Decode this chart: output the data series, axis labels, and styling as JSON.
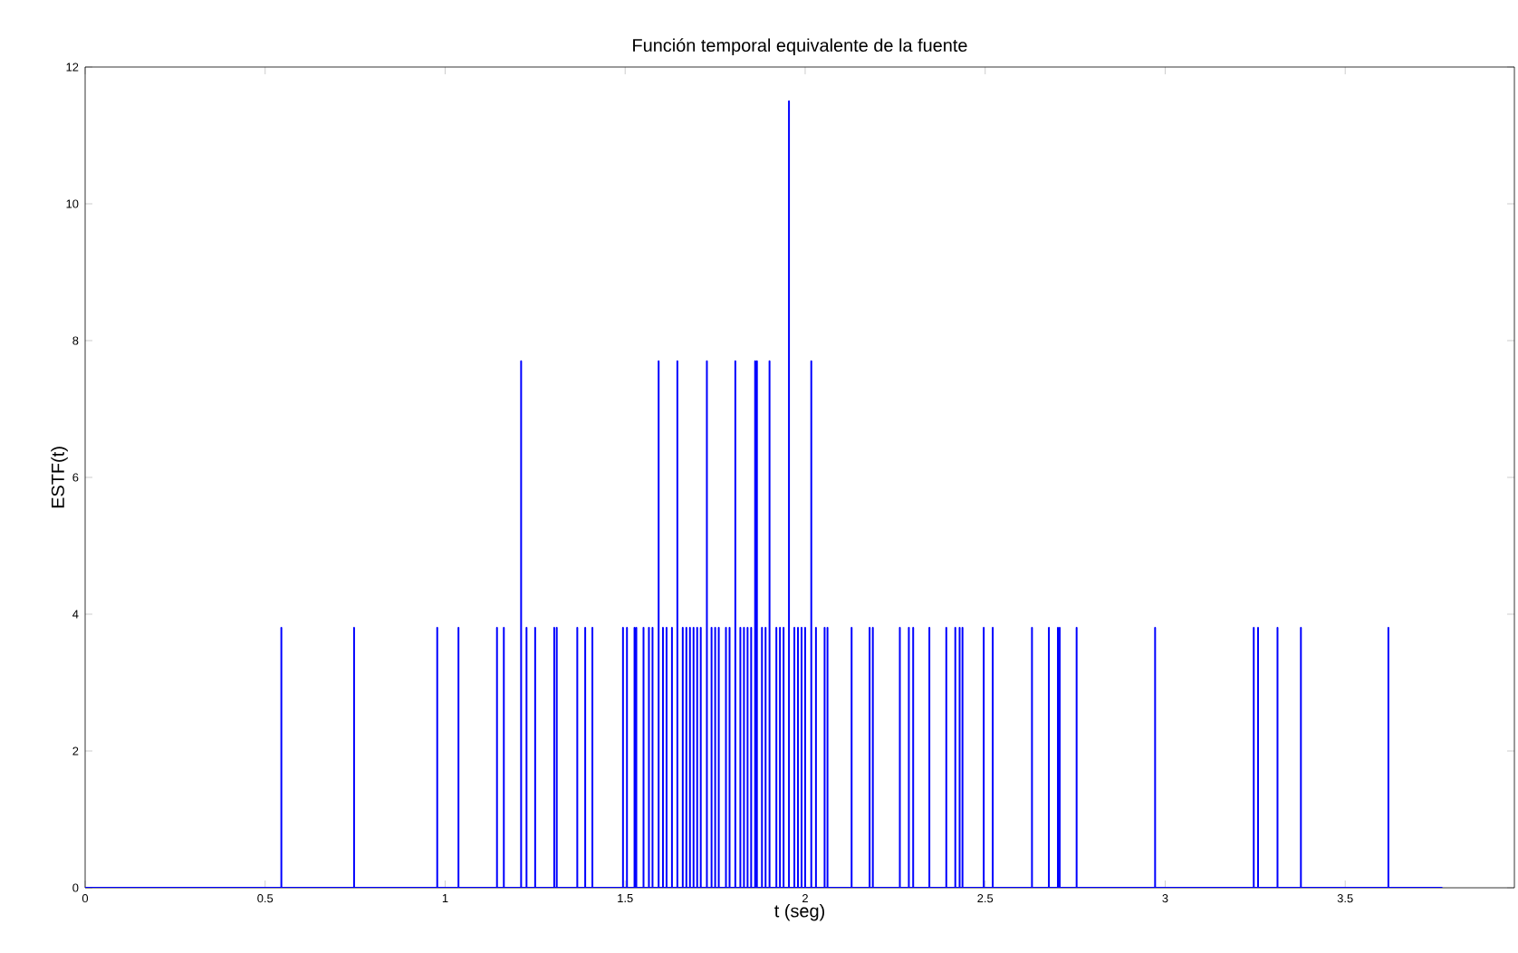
{
  "chart_data": {
    "type": "line",
    "title": "Función temporal equivalente de la fuente",
    "xlabel": "t (seg)",
    "ylabel": "ESTF(t)",
    "xlim": [
      0,
      3.97
    ],
    "ylim": [
      0,
      12
    ],
    "xticks": [
      0,
      0.5,
      1,
      1.5,
      2,
      2.5,
      3,
      3.5
    ],
    "yticks": [
      0,
      2,
      4,
      6,
      8,
      10,
      12
    ],
    "series": [
      {
        "color": "#0000ff",
        "x": [
          0,
          0.545,
          0.545,
          0.545,
          0.747,
          0.747,
          0.747,
          0.978,
          0.978,
          0.978,
          1.037,
          1.037,
          1.037,
          1.144,
          1.144,
          1.144,
          1.163,
          1.163,
          1.163,
          1.211,
          1.211,
          1.211,
          1.226,
          1.226,
          1.226,
          1.25,
          1.25,
          1.25,
          1.303,
          1.303,
          1.303,
          1.31,
          1.31,
          1.31,
          1.367,
          1.367,
          1.367,
          1.389,
          1.389,
          1.389,
          1.409,
          1.409,
          1.409,
          1.494,
          1.494,
          1.494,
          1.505,
          1.505,
          1.505,
          1.526,
          1.526,
          1.526,
          1.531,
          1.531,
          1.531,
          1.551,
          1.551,
          1.551,
          1.566,
          1.566,
          1.566,
          1.576,
          1.576,
          1.576,
          1.593,
          1.593,
          1.593,
          1.605,
          1.605,
          1.605,
          1.615,
          1.615,
          1.615,
          1.63,
          1.63,
          1.63,
          1.645,
          1.645,
          1.645,
          1.66,
          1.66,
          1.66,
          1.67,
          1.67,
          1.67,
          1.68,
          1.68,
          1.68,
          1.69,
          1.69,
          1.69,
          1.7,
          1.7,
          1.7,
          1.71,
          1.71,
          1.71,
          1.727,
          1.727,
          1.727,
          1.74,
          1.74,
          1.74,
          1.75,
          1.75,
          1.75,
          1.76,
          1.76,
          1.76,
          1.78,
          1.78,
          1.78,
          1.79,
          1.79,
          1.79,
          1.806,
          1.806,
          1.806,
          1.82,
          1.82,
          1.82,
          1.83,
          1.83,
          1.83,
          1.84,
          1.84,
          1.84,
          1.85,
          1.85,
          1.85,
          1.861,
          1.861,
          1.861,
          1.866,
          1.866,
          1.866,
          1.88,
          1.88,
          1.88,
          1.89,
          1.89,
          1.89,
          1.901,
          1.901,
          1.901,
          1.92,
          1.92,
          1.92,
          1.93,
          1.93,
          1.93,
          1.94,
          1.94,
          1.94,
          1.955,
          1.955,
          1.955,
          1.97,
          1.97,
          1.97,
          1.98,
          1.98,
          1.98,
          1.99,
          1.99,
          1.99,
          2.0,
          2.0,
          2.0,
          2.017,
          2.017,
          2.017,
          2.03,
          2.03,
          2.03,
          2.054,
          2.054,
          2.054,
          2.062,
          2.062,
          2.062,
          2.129,
          2.129,
          2.129,
          2.179,
          2.179,
          2.179,
          2.188,
          2.188,
          2.188,
          2.263,
          2.263,
          2.263,
          2.288,
          2.288,
          2.288,
          2.3,
          2.3,
          2.3,
          2.345,
          2.345,
          2.345,
          2.392,
          2.392,
          2.392,
          2.417,
          2.417,
          2.417,
          2.429,
          2.429,
          2.429,
          2.437,
          2.437,
          2.437,
          2.496,
          2.496,
          2.496,
          2.521,
          2.521,
          2.521,
          2.63,
          2.63,
          2.63,
          2.677,
          2.677,
          2.677,
          2.702,
          2.702,
          2.702,
          2.707,
          2.707,
          2.707,
          2.754,
          2.754,
          2.754,
          2.972,
          2.972,
          2.972,
          3.246,
          3.246,
          3.246,
          3.258,
          3.258,
          3.258,
          3.312,
          3.312,
          3.312,
          3.377,
          3.377,
          3.377,
          3.62,
          3.62,
          3.62,
          3.77
        ],
        "values": [
          0,
          0,
          3.8,
          0,
          0,
          3.8,
          0,
          0,
          3.8,
          0,
          0,
          3.8,
          0,
          0,
          3.8,
          0,
          0,
          3.8,
          0,
          0,
          7.7,
          0,
          0,
          3.8,
          0,
          0,
          3.8,
          0,
          0,
          3.8,
          0,
          0,
          3.8,
          0,
          0,
          3.8,
          0,
          0,
          3.8,
          0,
          0,
          3.8,
          0,
          0,
          3.8,
          0,
          0,
          3.8,
          0,
          0,
          3.8,
          0,
          0,
          3.8,
          0,
          0,
          3.8,
          0,
          0,
          3.8,
          0,
          0,
          3.8,
          0,
          0,
          7.7,
          0,
          0,
          3.8,
          0,
          0,
          3.8,
          0,
          0,
          3.8,
          0,
          0,
          7.7,
          0,
          0,
          3.8,
          0,
          0,
          3.8,
          0,
          0,
          3.8,
          0,
          0,
          3.8,
          0,
          0,
          3.8,
          0,
          0,
          3.8,
          0,
          0,
          7.7,
          0,
          0,
          3.8,
          0,
          0,
          3.8,
          0,
          0,
          3.8,
          0,
          0,
          3.8,
          0,
          0,
          3.8,
          0,
          0,
          7.7,
          0,
          0,
          3.8,
          0,
          0,
          3.8,
          0,
          0,
          3.8,
          0,
          0,
          3.8,
          0,
          0,
          7.7,
          0,
          0,
          7.7,
          0,
          0,
          3.8,
          0,
          0,
          3.8,
          0,
          0,
          7.7,
          0,
          0,
          3.8,
          0,
          0,
          3.8,
          0,
          0,
          3.8,
          0,
          0,
          11.5,
          0,
          0,
          3.8,
          0,
          0,
          3.8,
          0,
          0,
          3.8,
          0,
          0,
          3.8,
          0,
          0,
          7.7,
          0,
          0,
          3.8,
          0,
          0,
          3.8,
          0,
          0,
          3.8,
          0,
          0,
          3.8,
          0,
          0,
          3.8,
          0,
          0,
          3.8,
          0,
          0,
          3.8,
          0,
          0,
          3.8,
          0,
          0,
          3.8,
          0,
          0,
          3.8,
          0,
          0,
          3.8,
          0,
          0,
          3.8,
          0,
          0,
          3.8,
          0,
          0,
          3.8,
          0,
          0,
          3.8,
          0,
          0,
          3.8,
          0,
          0,
          3.8,
          0,
          0,
          3.8,
          0,
          0,
          3.8,
          0,
          0,
          3.8,
          0,
          0,
          3.8,
          0,
          0,
          3.8,
          0,
          0,
          3.8,
          0,
          0,
          3.8,
          0,
          0,
          3.8,
          0,
          0,
          3.8,
          0,
          0,
          3.8,
          0,
          0
        ]
      }
    ]
  }
}
